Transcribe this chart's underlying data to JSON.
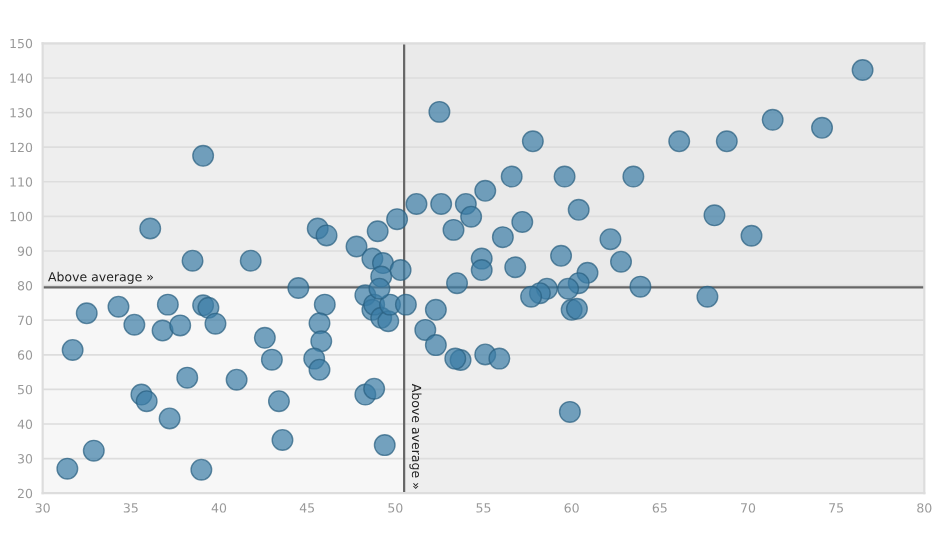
{
  "chart_data": {
    "type": "scatter",
    "xlim": [
      30,
      80
    ],
    "ylim": [
      20,
      150
    ],
    "xticks": [
      30,
      35,
      40,
      45,
      50,
      55,
      60,
      65,
      70,
      75,
      80
    ],
    "yticks": [
      20,
      30,
      40,
      50,
      60,
      70,
      80,
      90,
      100,
      110,
      120,
      130,
      140,
      150
    ],
    "grid": "y",
    "marker": "circle",
    "bands": [
      {
        "axis": "y",
        "from": 79.5,
        "to": 150,
        "color": "#e8e8e8"
      },
      {
        "axis": "x",
        "from": 50.5,
        "to": 80,
        "color": "#e8e8e8"
      }
    ],
    "ref_lines": [
      {
        "axis": "y",
        "value": 79.5,
        "label": "Above average »",
        "color": "#666666"
      },
      {
        "axis": "x",
        "value": 50.5,
        "label": "Above average »",
        "color": "#666666"
      }
    ],
    "series": [
      {
        "color": "#3a7ca5",
        "x": [
          39.1,
          36.1,
          38.5,
          41.8,
          45.6,
          46.1,
          47.8,
          49.0,
          50.1,
          48.7,
          49.3,
          49.2,
          50.3,
          52.5,
          51.2,
          52.6,
          54.0,
          53.3,
          54.3,
          76.5,
          71.4,
          74.2,
          57.8,
          66.1,
          68.8,
          56.6,
          59.6,
          63.5,
          55.1,
          60.4,
          57.2,
          68.1,
          70.2,
          56.1,
          62.2,
          59.4,
          62.8,
          54.9,
          56.8,
          54.9,
          60.9,
          60.4,
          59.8,
          58.6,
          58.2,
          57.7,
          63.9,
          67.7,
          60.0,
          60.3,
          55.1,
          55.9,
          53.7,
          59.9,
          44.5,
          46.0,
          32.5,
          34.3,
          31.7,
          35.2,
          37.1,
          36.8,
          37.8,
          39.1,
          39.4,
          39.8,
          38.2,
          35.6,
          35.9,
          37.2,
          32.9,
          31.4,
          39.0,
          41.0,
          42.6,
          43.0,
          43.4,
          43.6,
          45.7,
          45.8,
          45.4,
          45.7,
          48.3,
          48.8,
          49.4,
          48.3,
          48.7,
          48.8,
          49.2,
          49.6,
          49.7,
          49.1,
          50.6,
          51.7,
          52.3,
          52.3,
          53.5,
          53.4
        ],
        "values": [
          117.5,
          96.5,
          87.2,
          87.2,
          96.5,
          94.5,
          91.3,
          95.7,
          99.2,
          87.8,
          86.5,
          82.6,
          84.5,
          130.2,
          103.6,
          103.6,
          103.6,
          96.1,
          99.9,
          142.3,
          127.9,
          125.6,
          121.7,
          121.7,
          121.7,
          111.5,
          111.5,
          111.5,
          107.4,
          101.9,
          98.4,
          100.3,
          94.4,
          94.0,
          93.4,
          88.6,
          86.9,
          87.8,
          85.3,
          84.5,
          83.7,
          80.7,
          79.1,
          79.1,
          77.8,
          76.8,
          79.7,
          76.8,
          73.0,
          73.3,
          60.1,
          58.9,
          58.5,
          43.5,
          79.3,
          74.5,
          72.0,
          73.9,
          61.4,
          68.7,
          74.5,
          67.0,
          68.5,
          74.3,
          73.6,
          69.0,
          53.4,
          48.5,
          46.6,
          41.6,
          32.3,
          27.1,
          26.8,
          52.8,
          64.9,
          58.6,
          46.6,
          35.4,
          69.1,
          63.9,
          58.9,
          55.7,
          48.5,
          50.2,
          33.9,
          77.2,
          73.0,
          74.5,
          70.7,
          69.7,
          74.5,
          79.1,
          74.5,
          67.2,
          62.8,
          73.0,
          80.7,
          58.9
        ]
      }
    ]
  }
}
